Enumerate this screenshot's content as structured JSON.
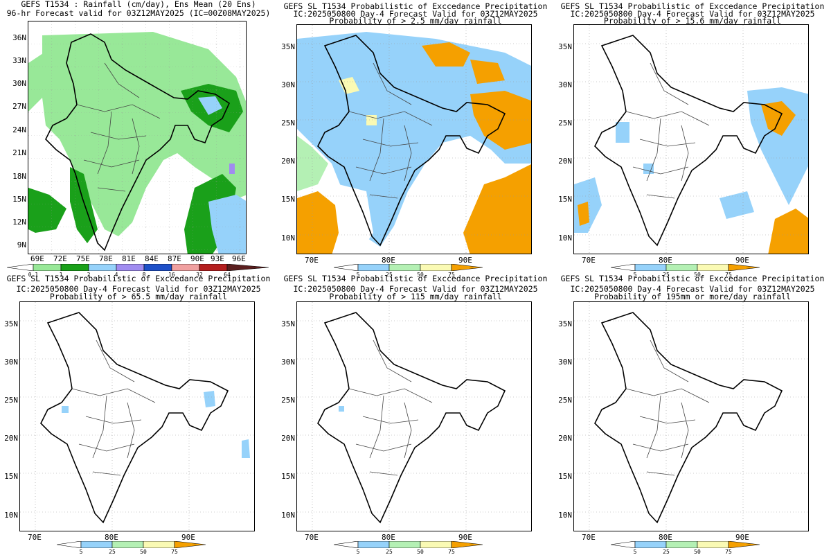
{
  "panels": [
    {
      "title_lines": [
        "GEFS T1534 : Rainfall (cm/day), Ens Mean (20 Ens)",
        "96-hr Forecast valid for 03Z12MAY2025 (IC=00Z08MAY2025)"
      ],
      "lat_labels": [
        "36N",
        "33N",
        "30N",
        "27N",
        "24N",
        "21N",
        "18N",
        "15N",
        "12N",
        "9N"
      ],
      "lon_labels": [
        "69E",
        "72E",
        "75E",
        "78E",
        "81E",
        "84E",
        "87E",
        "90E",
        "93E",
        "96E"
      ],
      "colorbar_labels": [
        "0.1",
        "1",
        "2",
        "4",
        "8",
        "16",
        "32",
        "64"
      ],
      "colorbar_colors": [
        "#ffffff",
        "#98e898",
        "#1aa01a",
        "#96d2fa",
        "#a08cf0",
        "#1e50c8",
        "#f0a0a0",
        "#b41e1e",
        "#5a1e1e"
      ]
    },
    {
      "title_lines": [
        "GEFS SL T1534 Probabilistic of Exccedance Precipitation",
        "IC:2025050800 Day-4 Forecast Valid for 03Z12MAY2025",
        "Probability of > 2.5 mm/day rainfall"
      ],
      "lat_labels": [
        "35N",
        "30N",
        "25N",
        "20N",
        "15N",
        "10N"
      ],
      "lon_labels": [
        "70E",
        "80E",
        "90E"
      ],
      "colorbar_labels": [
        "5",
        "25",
        "50",
        "75"
      ],
      "colorbar_colors": [
        "#ffffff",
        "#96d2fa",
        "#b4f0b4",
        "#fafab4",
        "#f5a000"
      ]
    },
    {
      "title_lines": [
        "GEFS SL T1534 Probabilistic of Exccedance Precipitation",
        "IC:2025050800 Day-4 Forecast Valid for 03Z12MAY2025",
        "Probability of > 15.6 mm/day rainfall"
      ],
      "lat_labels": [
        "35N",
        "30N",
        "25N",
        "20N",
        "15N",
        "10N"
      ],
      "lon_labels": [
        "70E",
        "80E",
        "90E"
      ],
      "colorbar_labels": [
        "5",
        "25",
        "50",
        "75"
      ],
      "colorbar_colors": [
        "#ffffff",
        "#96d2fa",
        "#b4f0b4",
        "#fafab4",
        "#f5a000"
      ]
    },
    {
      "title_lines": [
        "GEFS SL T1534 Probabilistic of Exccedance Precipitation",
        "IC:2025050800 Day-4 Forecast Valid for 03Z12MAY2025",
        "Probability of > 65.5 mm/day rainfall"
      ],
      "lat_labels": [
        "35N",
        "30N",
        "25N",
        "20N",
        "15N",
        "10N"
      ],
      "lon_labels": [
        "70E",
        "80E",
        "90E"
      ],
      "colorbar_labels": [
        "5",
        "25",
        "50",
        "75"
      ],
      "colorbar_colors": [
        "#ffffff",
        "#96d2fa",
        "#b4f0b4",
        "#fafab4",
        "#f5a000"
      ]
    },
    {
      "title_lines": [
        "GEFS SL T1534 Probabilistic of Exccedance Precipitation",
        "IC:2025050800 Day-4 Forecast Valid for 03Z12MAY2025",
        "Probability of > 115 mm/day rainfall"
      ],
      "lat_labels": [
        "35N",
        "30N",
        "25N",
        "20N",
        "15N",
        "10N"
      ],
      "lon_labels": [
        "70E",
        "80E",
        "90E"
      ],
      "colorbar_labels": [
        "5",
        "25",
        "50",
        "75"
      ],
      "colorbar_colors": [
        "#ffffff",
        "#96d2fa",
        "#b4f0b4",
        "#fafab4",
        "#f5a000"
      ]
    },
    {
      "title_lines": [
        "GEFS SL T1534 Probabilistic of Exccedance Precipitation",
        "IC:2025050800 Day-4 Forecast Valid for 03Z12MAY2025",
        "Probability of 195mm or more/day rainfall"
      ],
      "lat_labels": [
        "35N",
        "30N",
        "25N",
        "20N",
        "15N",
        "10N"
      ],
      "lon_labels": [
        "70E",
        "80E",
        "90E"
      ],
      "colorbar_labels": [
        "5",
        "25",
        "50",
        "75"
      ],
      "colorbar_colors": [
        "#ffffff",
        "#96d2fa",
        "#b4f0b4",
        "#fafab4",
        "#f5a000"
      ]
    }
  ]
}
